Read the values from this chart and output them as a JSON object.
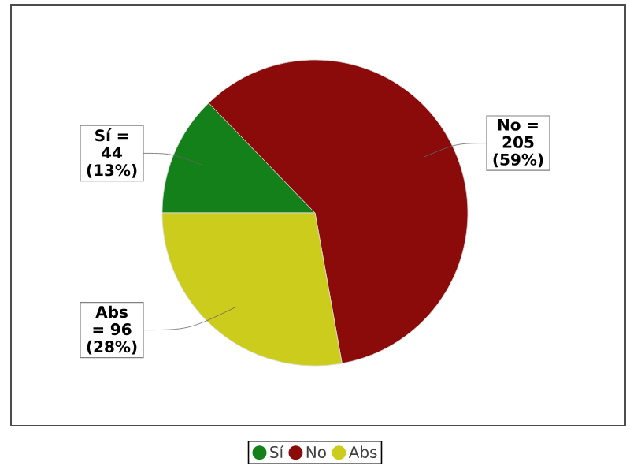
{
  "chart_data": {
    "type": "pie",
    "categories": [
      "Sí",
      "No",
      "Abs"
    ],
    "values": [
      44,
      205,
      96
    ],
    "colors": [
      "#138019",
      "#8b0a0a",
      "#cccc1c"
    ],
    "value_labels": [
      "Sí = 44 (13%)",
      "No = 205 (59%)",
      "Abs = 96 (28%)"
    ],
    "legend": "bottom"
  }
}
